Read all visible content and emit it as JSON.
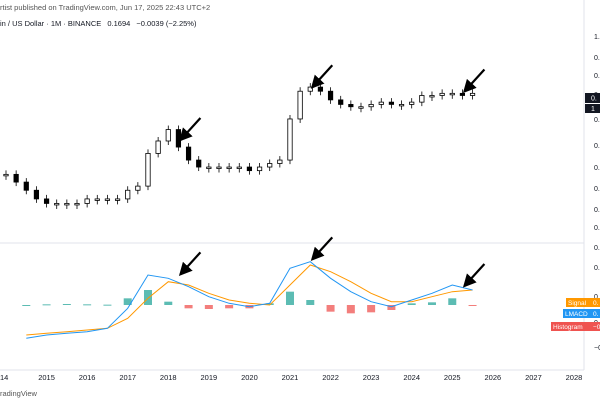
{
  "header": {
    "published": "rtist published on TradingView.com, Jun 17, 2025 22:43 UTC+2",
    "symbol": "in / US Dollar · 1M · BINANCE",
    "price": "0.1694",
    "change": "−0.0039 (−2.25%)"
  },
  "footer": {
    "text": "radingView"
  },
  "colors": {
    "up": "#26a69a",
    "down": "#ef5350",
    "candle": "#000000",
    "signal": "#ff9800",
    "macd": "#2196f3",
    "hist_label": "#ef5350"
  },
  "chart_data": [
    {
      "type": "candlestick",
      "title": "",
      "x": [
        2014.0,
        2014.25,
        2014.5,
        2014.75,
        2015.0,
        2015.25,
        2015.5,
        2015.75,
        2016.0,
        2016.25,
        2016.5,
        2016.75,
        2017.0,
        2017.25,
        2017.5,
        2017.75,
        2018.0,
        2018.25,
        2018.5,
        2018.75,
        2019.0,
        2019.25,
        2019.5,
        2019.75,
        2020.0,
        2020.25,
        2020.5,
        2020.75,
        2021.0,
        2021.25,
        2021.5,
        2021.75,
        2022.0,
        2022.25,
        2022.5,
        2022.75,
        2023.0,
        2023.25,
        2023.5,
        2023.75,
        2024.0,
        2024.25,
        2024.5,
        2024.75,
        2025.0,
        2025.25,
        2025.5
      ],
      "values": [
        0.19,
        0.18,
        0.17,
        0.16,
        0.155,
        0.155,
        0.155,
        0.155,
        0.16,
        0.16,
        0.16,
        0.16,
        0.17,
        0.175,
        0.22,
        0.24,
        0.26,
        0.23,
        0.21,
        0.2,
        0.2,
        0.2,
        0.2,
        0.2,
        0.195,
        0.2,
        0.205,
        0.21,
        0.28,
        0.34,
        0.35,
        0.34,
        0.32,
        0.31,
        0.305,
        0.305,
        0.31,
        0.315,
        0.31,
        0.31,
        0.315,
        0.33,
        0.33,
        0.335,
        0.335,
        0.33,
        0.335
      ],
      "yticks": [
        "1.",
        "0.",
        "0.",
        "0.",
        "0.",
        "0.",
        "0.",
        "0.",
        "0.",
        "0.",
        "0."
      ],
      "last_price_label": "0.",
      "last_price_label2": "1",
      "annotations": [
        "arrow 2018",
        "arrow 2021",
        "arrow 2025"
      ]
    },
    {
      "type": "line",
      "title": "",
      "x": [
        2014.5,
        2015.0,
        2015.5,
        2016.0,
        2016.5,
        2017.0,
        2017.5,
        2018.0,
        2018.5,
        2019.0,
        2019.5,
        2020.0,
        2020.5,
        2021.0,
        2021.5,
        2022.0,
        2022.5,
        2023.0,
        2023.5,
        2024.0,
        2024.5,
        2025.0,
        2025.5
      ],
      "series": [
        {
          "name": "Signal",
          "values": [
            -0.9,
            -0.85,
            -0.8,
            -0.75,
            -0.7,
            -0.4,
            0.2,
            0.7,
            0.6,
            0.35,
            0.15,
            0.05,
            0.0,
            0.6,
            1.2,
            1.0,
            0.7,
            0.35,
            0.1,
            0.1,
            0.25,
            0.4,
            0.45
          ]
        },
        {
          "name": "LMACD",
          "values": [
            -1.0,
            -0.9,
            -0.85,
            -0.8,
            -0.7,
            -0.1,
            0.9,
            0.8,
            0.55,
            0.25,
            0.05,
            -0.05,
            0.05,
            1.1,
            1.3,
            0.8,
            0.4,
            0.1,
            -0.05,
            0.15,
            0.35,
            0.6,
            0.45
          ]
        },
        {
          "name": "Histogram",
          "values": [
            0.0,
            0.02,
            0.03,
            0.02,
            0.01,
            0.2,
            0.45,
            0.1,
            -0.1,
            -0.12,
            -0.1,
            -0.1,
            0.05,
            0.4,
            0.15,
            -0.2,
            -0.25,
            -0.22,
            -0.15,
            0.05,
            0.08,
            0.2,
            -0.02
          ]
        }
      ],
      "legend": [
        "Signal",
        "LMACD",
        "Histogram"
      ],
      "legend_values": [
        "0.",
        "0.",
        "−0"
      ],
      "yticks": [
        "0.",
        "0.",
        "0",
        "−0."
      ],
      "annotations": [
        "arrow 2018",
        "arrow 2021",
        "arrow 2025"
      ]
    }
  ],
  "xaxis": {
    "ticks": [
      "14",
      "2015",
      "2016",
      "2017",
      "2018",
      "2019",
      "2020",
      "2021",
      "2022",
      "2023",
      "2024",
      "2025",
      "2026",
      "2027",
      "2028"
    ]
  }
}
